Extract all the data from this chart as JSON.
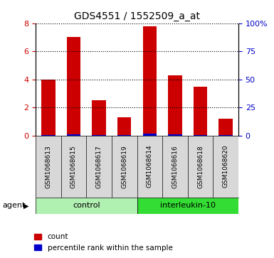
{
  "title": "GDS4551 / 1552509_a_at",
  "samples": [
    "GSM1068613",
    "GSM1068615",
    "GSM1068617",
    "GSM1068619",
    "GSM1068614",
    "GSM1068616",
    "GSM1068618",
    "GSM1068620"
  ],
  "red_values": [
    4.0,
    7.0,
    2.5,
    1.3,
    7.8,
    4.3,
    3.5,
    1.2
  ],
  "blue_values": [
    0.6,
    1.0,
    0.4,
    0.15,
    1.5,
    0.8,
    0.6,
    0.2
  ],
  "groups": [
    {
      "label": "control",
      "start": 0,
      "end": 4,
      "color": "#b0f0b0"
    },
    {
      "label": "interleukin-10",
      "start": 4,
      "end": 8,
      "color": "#33dd33"
    }
  ],
  "group_row_label": "agent",
  "ylim_left": [
    0,
    8
  ],
  "ylim_right": [
    0,
    100
  ],
  "yticks_left": [
    0,
    2,
    4,
    6,
    8
  ],
  "yticks_right": [
    0,
    25,
    50,
    75,
    100
  ],
  "ytick_labels_right": [
    "0",
    "25",
    "50",
    "75",
    "100%"
  ],
  "bar_width": 0.55,
  "red_color": "#cc0000",
  "blue_color": "#0000cc",
  "grid_color": "black",
  "sample_bg_color": "#d8d8d8",
  "legend_red": "count",
  "legend_blue": "percentile rank within the sample",
  "left_tick_color": "#cc0000",
  "right_tick_color": "#0000cc"
}
